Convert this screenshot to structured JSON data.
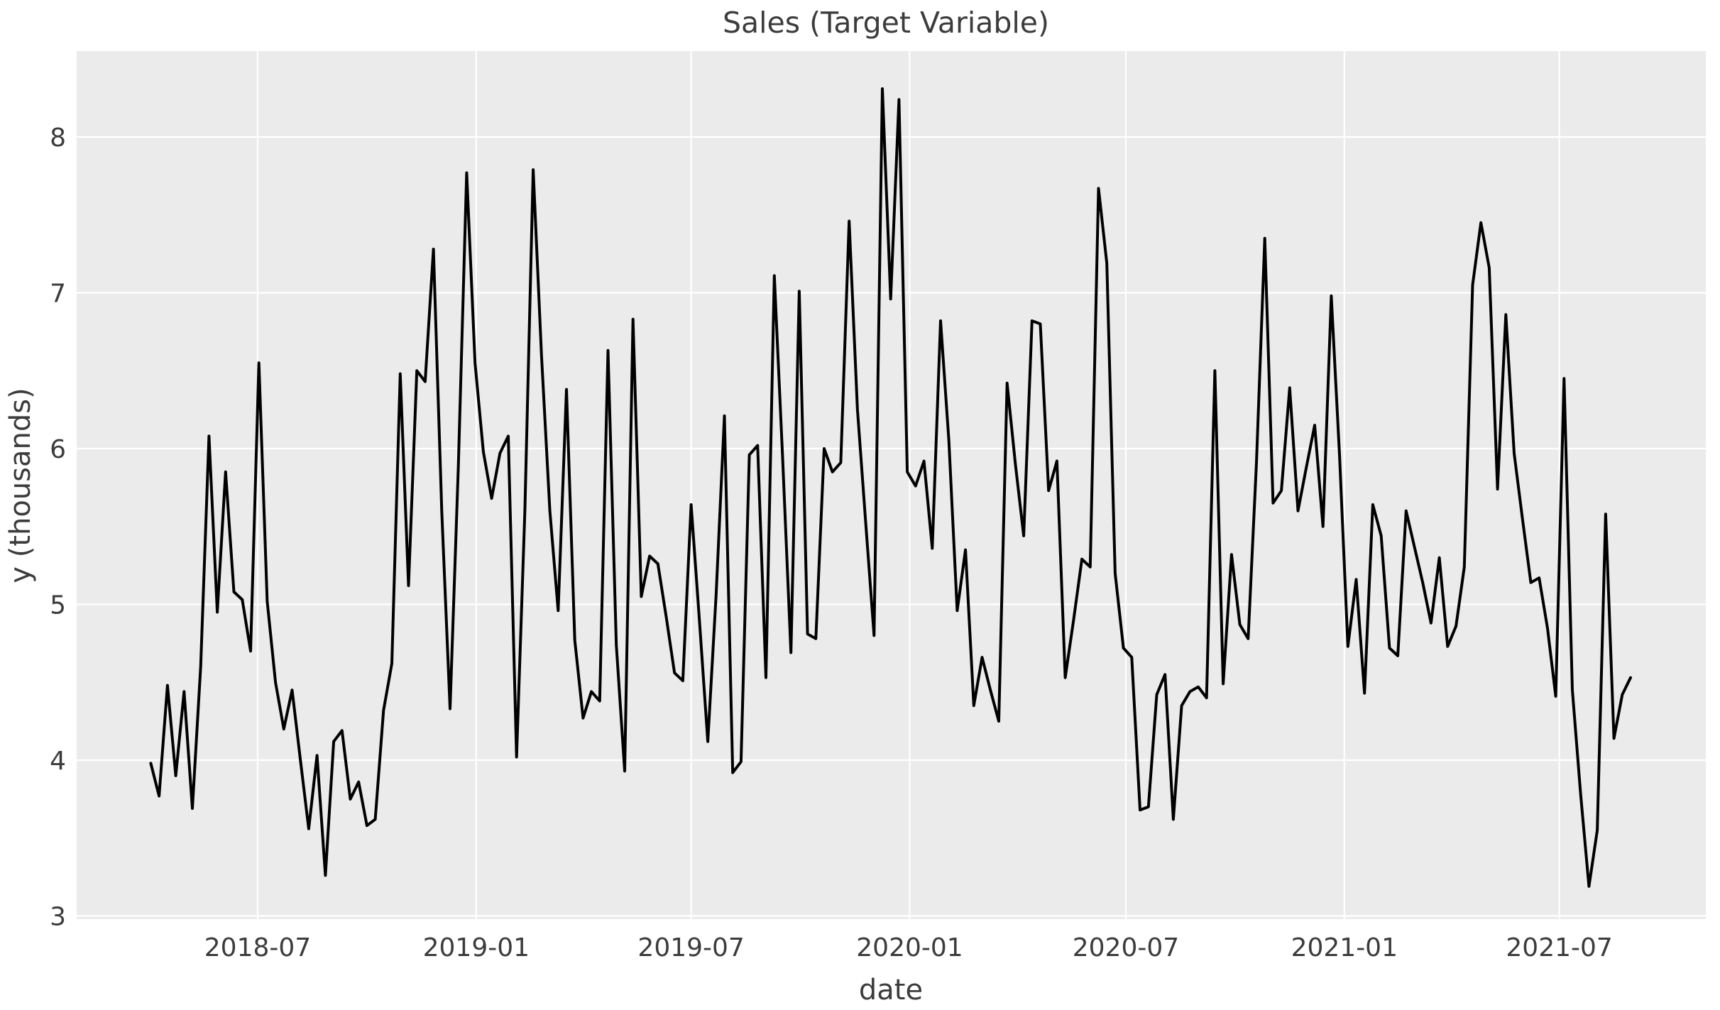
{
  "chart_data": {
    "type": "line",
    "title": "Sales (Target Variable)",
    "xlabel": "date",
    "ylabel": "y (thousands)",
    "legend": false,
    "grid": true,
    "plot_bg": "#EBEBEB",
    "figure_bg": "#FFFFFF",
    "grid_color": "#FFFFFF",
    "line_color": "#000000",
    "text_color": "#3C3C3C",
    "ylim": [
      2.98,
      8.55
    ],
    "y_ticks": [
      3,
      4,
      5,
      6,
      7,
      8
    ],
    "x_ticks": [
      {
        "date": "2018-07-01",
        "label": "2018-07"
      },
      {
        "date": "2019-01-01",
        "label": "2019-01"
      },
      {
        "date": "2019-07-01",
        "label": "2019-07"
      },
      {
        "date": "2020-01-01",
        "label": "2020-01"
      },
      {
        "date": "2020-07-01",
        "label": "2020-07"
      },
      {
        "date": "2021-01-01",
        "label": "2021-01"
      },
      {
        "date": "2021-07-01",
        "label": "2021-07"
      }
    ],
    "series": [
      {
        "name": "Sales",
        "start_date": "2018-04-02",
        "interval_days": 7,
        "values": [
          3.98,
          3.77,
          4.48,
          3.9,
          4.44,
          3.69,
          4.6,
          6.08,
          4.95,
          5.85,
          5.08,
          5.03,
          4.7,
          6.55,
          5.02,
          4.5,
          4.2,
          4.45,
          4.0,
          3.56,
          4.03,
          3.26,
          4.12,
          4.19,
          3.75,
          3.86,
          3.58,
          3.62,
          4.32,
          4.62,
          6.48,
          5.12,
          6.5,
          6.43,
          7.28,
          5.6,
          4.33,
          5.89,
          7.77,
          6.55,
          5.98,
          5.68,
          5.97,
          6.08,
          4.02,
          5.6,
          7.79,
          6.6,
          5.6,
          4.96,
          6.38,
          4.77,
          4.27,
          4.44,
          4.38,
          6.63,
          4.74,
          3.93,
          6.83,
          5.05,
          5.31,
          5.26,
          4.92,
          4.56,
          4.51,
          5.64,
          4.89,
          4.12,
          5.06,
          6.21,
          3.92,
          3.99,
          5.96,
          6.02,
          4.53,
          7.11,
          5.94,
          4.69,
          7.01,
          4.81,
          4.78,
          6.0,
          5.85,
          5.91,
          7.46,
          6.25,
          5.52,
          4.8,
          8.31,
          6.96,
          8.24,
          5.85,
          5.76,
          5.92,
          5.36,
          6.82,
          6.05,
          4.96,
          5.35,
          4.35,
          4.66,
          4.45,
          4.25,
          6.42,
          5.9,
          5.44,
          6.82,
          6.8,
          5.73,
          5.92,
          4.53,
          4.9,
          5.29,
          5.24,
          7.67,
          7.19,
          5.2,
          4.72,
          4.66,
          3.68,
          3.7,
          4.42,
          4.55,
          3.62,
          4.35,
          4.44,
          4.47,
          4.4,
          6.5,
          4.49,
          5.32,
          4.87,
          4.78,
          5.91,
          7.35,
          5.65,
          5.73,
          6.39,
          5.6,
          5.88,
          6.15,
          5.5,
          6.98,
          5.95,
          4.73,
          5.16,
          4.43,
          5.64,
          5.44,
          4.72,
          4.67,
          5.6,
          5.37,
          5.14,
          4.88,
          5.3,
          4.73,
          4.86,
          5.24,
          7.05,
          7.45,
          7.16,
          5.74,
          6.86,
          5.97,
          5.55,
          5.14,
          5.17,
          4.85,
          4.41,
          6.45,
          4.45,
          3.78,
          3.19,
          3.55,
          5.58,
          4.14,
          4.42,
          4.53
        ]
      }
    ]
  }
}
